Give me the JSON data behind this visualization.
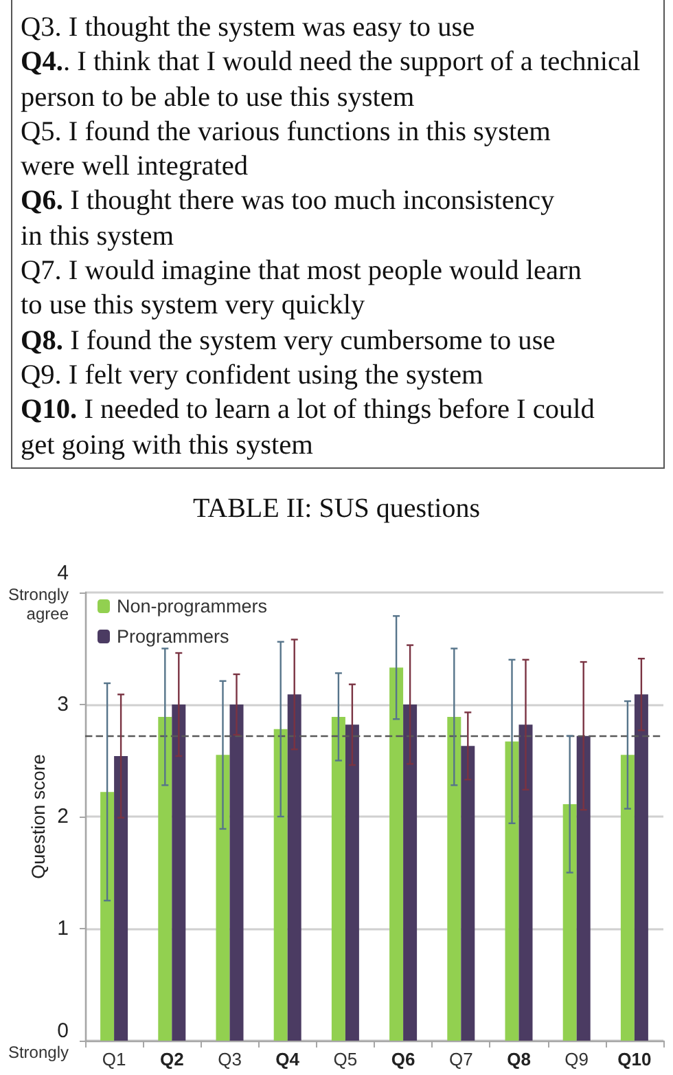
{
  "chart_data": {
    "type": "bar",
    "annotations": [
      "Q3. I thought the system was easy to use",
      "Q4.. I think that I would need the support of a technical\nperson to be able to use this system",
      "Q5. I found the various functions in this system\nwere well integrated",
      "Q6. I thought there was too much inconsistency\nin this system",
      "Q7. I would imagine that most people would learn\nto use this system very quickly",
      "Q8. I found the system very cumbersome to use",
      "Q9. I felt very confident using the system",
      "Q10. I needed to learn a lot of things before I could\nget going with this system",
      "TABLE II: SUS questions"
    ],
    "ylabel": "Question score",
    "categories": [
      "Q1",
      "Q2",
      "Q3",
      "Q4",
      "Q5",
      "Q6",
      "Q7",
      "Q8",
      "Q9",
      "Q10"
    ],
    "series": [
      {
        "name": "Non-programmers",
        "color": "#92d050",
        "values": [
          2.22,
          2.89,
          2.55,
          2.78,
          2.89,
          3.33,
          2.89,
          2.67,
          2.11,
          2.55
        ],
        "errors": [
          0.97,
          0.61,
          0.66,
          0.78,
          0.39,
          0.46,
          0.61,
          0.73,
          0.61,
          0.48
        ]
      },
      {
        "name": "Programmers",
        "color": "#4b3b62",
        "values": [
          2.54,
          3.0,
          3.0,
          3.09,
          2.82,
          3.0,
          2.63,
          2.82,
          2.72,
          3.09
        ],
        "errors": [
          0.55,
          0.46,
          0.27,
          0.49,
          0.36,
          0.53,
          0.3,
          0.58,
          0.66,
          0.32
        ]
      }
    ],
    "ylim": [
      0,
      4
    ],
    "yticks": [
      {
        "value": 0,
        "label": "0\nStrongly"
      },
      1,
      2,
      3,
      {
        "value": 4,
        "label": "4\nStrongly\nagree"
      }
    ],
    "ref_lines": [
      {
        "axis": "y",
        "value": 2.72,
        "color": "#595959",
        "line_style": "dashed"
      }
    ],
    "grid": "y",
    "legend": "top left"
  }
}
